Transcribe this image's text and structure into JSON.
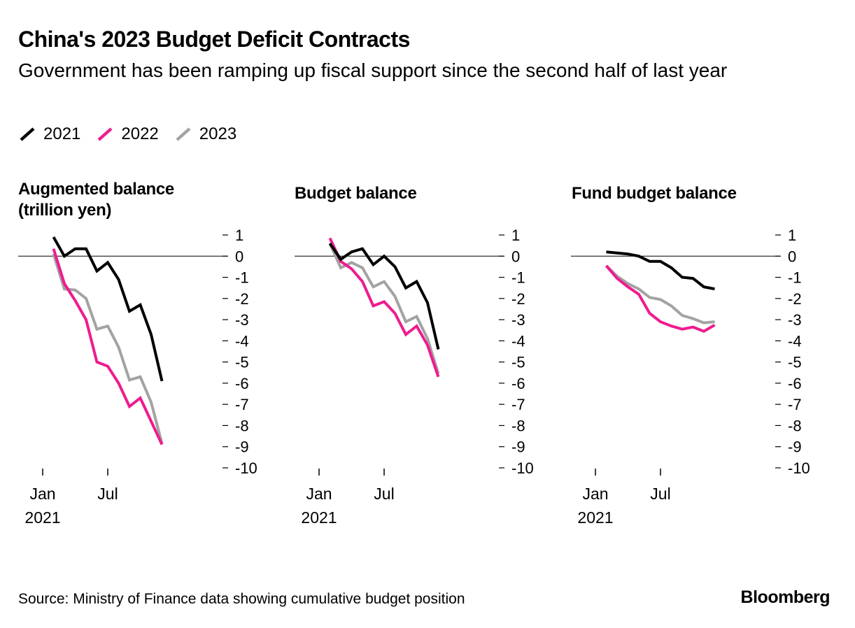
{
  "title": "China's 2023 Budget Deficit Contracts",
  "subtitle": "Government has been ramping up fiscal support since the second half of last year",
  "legend": [
    {
      "label": "2021",
      "color": "#000000"
    },
    {
      "label": "2022",
      "color": "#ee1c8f"
    },
    {
      "label": "2023",
      "color": "#a3a3a3"
    }
  ],
  "source": "Source: Ministry of Finance data showing cumulative budget position",
  "brand": "Bloomberg",
  "chart_data": [
    {
      "type": "line",
      "title_lines": [
        "Augmented balance",
        "(trillion yen)"
      ],
      "x_ticks": [
        "Jan",
        "Jul"
      ],
      "x_year": "2021",
      "y_ticks": [
        "1",
        "0",
        "-1",
        "-2",
        "-3",
        "-4",
        "-5",
        "-6",
        "-7",
        "-8",
        "-9",
        "-10"
      ],
      "ylim": [
        -10,
        1
      ],
      "x_months": [
        2,
        3,
        4,
        5,
        6,
        7,
        8,
        9,
        10,
        11,
        12
      ],
      "series": [
        {
          "name": "2021",
          "color": "#000000",
          "values": [
            0.9,
            0.0,
            0.35,
            0.35,
            -0.7,
            -0.3,
            -1.1,
            -2.6,
            -2.3,
            -3.7,
            -5.9
          ]
        },
        {
          "name": "2022",
          "color": "#ee1c8f",
          "values": [
            0.35,
            -1.3,
            -2.1,
            -3.0,
            -5.0,
            -5.2,
            -6.0,
            -7.1,
            -6.7,
            -7.8,
            -8.9
          ]
        },
        {
          "name": "2023",
          "color": "#a3a3a3",
          "values": [
            0.1,
            -1.55,
            -1.6,
            -2.0,
            -3.45,
            -3.3,
            -4.3,
            -5.85,
            -5.7,
            -6.9,
            -8.85
          ]
        }
      ]
    },
    {
      "type": "line",
      "title_lines": [
        "Budget balance"
      ],
      "x_ticks": [
        "Jan",
        "Jul"
      ],
      "x_year": "2021",
      "y_ticks": [
        "1",
        "0",
        "-1",
        "-2",
        "-3",
        "-4",
        "-5",
        "-6",
        "-7",
        "-8",
        "-9",
        "-10"
      ],
      "ylim": [
        -10,
        1
      ],
      "x_months": [
        2,
        3,
        4,
        5,
        6,
        7,
        8,
        9,
        10,
        11,
        12
      ],
      "series": [
        {
          "name": "2021",
          "color": "#000000",
          "values": [
            0.6,
            -0.15,
            0.2,
            0.35,
            -0.4,
            0.0,
            -0.5,
            -1.5,
            -1.2,
            -2.2,
            -4.4
          ]
        },
        {
          "name": "2022",
          "color": "#ee1c8f",
          "values": [
            0.85,
            -0.25,
            -0.6,
            -1.2,
            -2.35,
            -2.15,
            -2.7,
            -3.7,
            -3.3,
            -4.2,
            -5.7
          ]
        },
        {
          "name": "2023",
          "color": "#a3a3a3",
          "values": [
            0.6,
            -0.55,
            -0.3,
            -0.55,
            -1.45,
            -1.2,
            -1.9,
            -3.1,
            -2.85,
            -3.9,
            -5.55
          ]
        }
      ]
    },
    {
      "type": "line",
      "title_lines": [
        "Fund budget balance"
      ],
      "x_ticks": [
        "Jan",
        "Jul"
      ],
      "x_year": "2021",
      "y_ticks": [
        "1",
        "0",
        "-1",
        "-2",
        "-3",
        "-4",
        "-5",
        "-6",
        "-7",
        "-8",
        "-9",
        "-10"
      ],
      "ylim": [
        -10,
        1
      ],
      "x_months": [
        2,
        3,
        4,
        5,
        6,
        7,
        8,
        9,
        10,
        11,
        12
      ],
      "series": [
        {
          "name": "2021",
          "color": "#000000",
          "values": [
            0.2,
            0.15,
            0.1,
            0.0,
            -0.25,
            -0.25,
            -0.55,
            -1.0,
            -1.05,
            -1.45,
            -1.55
          ]
        },
        {
          "name": "2022",
          "color": "#ee1c8f",
          "values": [
            -0.45,
            -1.05,
            -1.45,
            -1.8,
            -2.7,
            -3.1,
            -3.3,
            -3.45,
            -3.35,
            -3.55,
            -3.25
          ]
        },
        {
          "name": "2023",
          "color": "#a3a3a3",
          "values": [
            -0.45,
            -0.95,
            -1.3,
            -1.55,
            -1.95,
            -2.05,
            -2.35,
            -2.8,
            -2.95,
            -3.15,
            -3.1
          ]
        }
      ]
    }
  ]
}
